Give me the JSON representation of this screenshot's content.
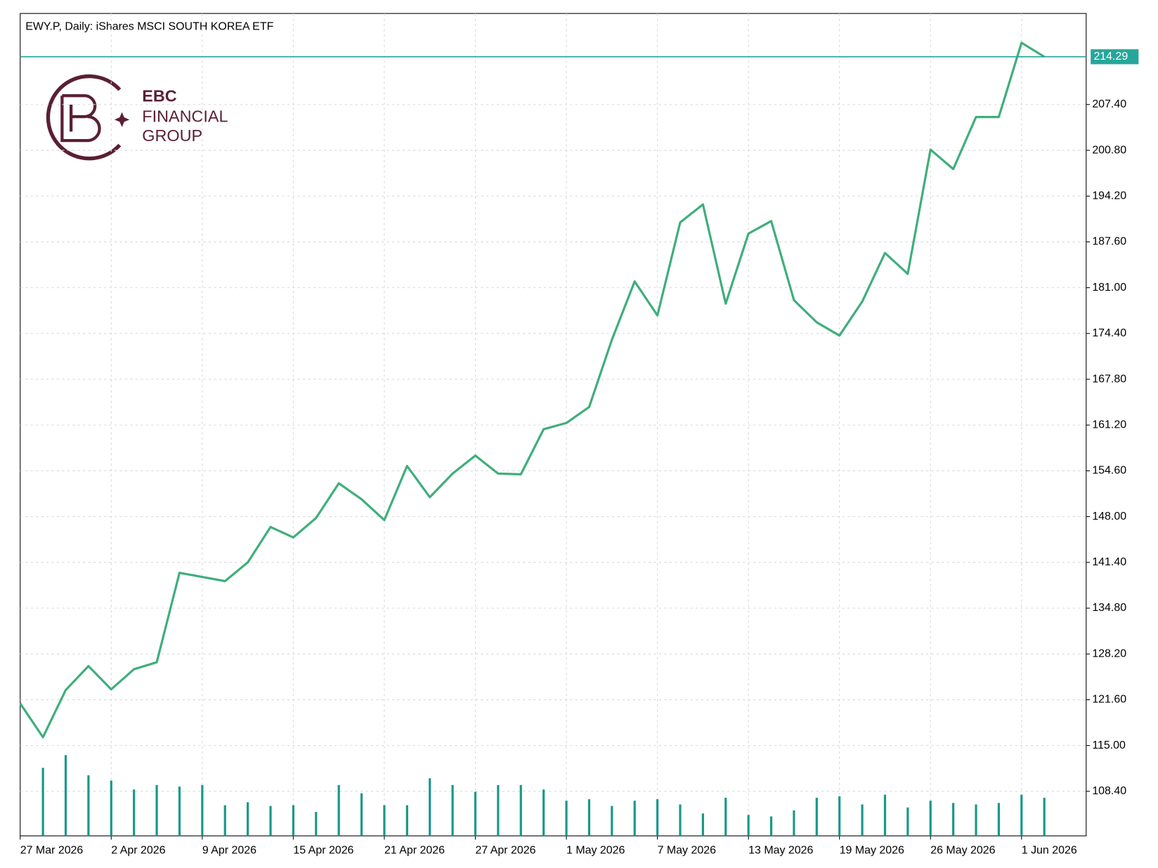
{
  "chart_data": {
    "type": "line",
    "title": "EWY.P, Daily:  iShares MSCI SOUTH KOREA ETF",
    "logo": {
      "line1": "EBC",
      "line2": "FINANCIAL",
      "line3": "GROUP"
    },
    "categories": [
      "27 Mar 2026",
      null,
      null,
      null,
      "2 Apr 2026",
      null,
      null,
      null,
      "9 Apr 2026",
      null,
      null,
      null,
      "15 Apr 2026",
      null,
      null,
      null,
      "21 Apr 2026",
      null,
      null,
      null,
      "27 Apr 2026",
      null,
      null,
      null,
      "1 May 2026",
      null,
      null,
      null,
      "7 May 2026",
      null,
      null,
      null,
      "13 May 2026",
      null,
      null,
      null,
      "19 May 2026",
      null,
      null,
      null,
      "26 May 2026",
      null,
      null,
      null,
      "1 Jun 2026",
      null
    ],
    "values": [
      121.07,
      116.2,
      123.0,
      126.45,
      123.1,
      126.0,
      127.0,
      139.9,
      139.3,
      138.7,
      141.4,
      146.5,
      145.0,
      147.8,
      152.8,
      150.5,
      147.5,
      155.3,
      150.8,
      154.2,
      156.8,
      154.2,
      154.1,
      160.6,
      161.5,
      163.8,
      173.5,
      181.9,
      177.0,
      190.4,
      193.0,
      178.7,
      188.8,
      190.6,
      179.2,
      176.0,
      174.1,
      179.0,
      186.0,
      183.0,
      200.9,
      198.1,
      205.6,
      205.6,
      216.3,
      214.29
    ],
    "color": "#3fae7c",
    "volume_values": [
      null,
      91,
      108,
      81,
      74,
      62,
      68,
      66,
      68,
      41,
      45,
      40,
      41,
      32,
      68,
      57,
      41,
      41,
      77,
      68,
      59,
      68,
      68,
      62,
      47,
      49,
      40,
      47,
      49,
      42,
      30,
      51,
      28,
      26,
      34,
      51,
      53,
      42,
      55,
      38,
      47,
      44,
      42,
      44,
      55,
      51
    ],
    "volume_color": "#17998a",
    "volume_lim": [
      0,
      1100
    ],
    "ylim": [
      101.98,
      220.53
    ],
    "yticks": [
      {
        "value": 108.4,
        "label": "108.40"
      },
      {
        "value": 115.0,
        "label": "115.00"
      },
      {
        "value": 121.6,
        "label": "121.60"
      },
      {
        "value": 128.2,
        "label": "128.20"
      },
      {
        "value": 134.8,
        "label": "134.80"
      },
      {
        "value": 141.4,
        "label": "141.40"
      },
      {
        "value": 148.0,
        "label": "148.00"
      },
      {
        "value": 154.6,
        "label": "154.60"
      },
      {
        "value": 161.2,
        "label": "161.20"
      },
      {
        "value": 167.8,
        "label": "167.80"
      },
      {
        "value": 174.4,
        "label": "174.40"
      },
      {
        "value": 181.0,
        "label": "181.00"
      },
      {
        "value": 187.6,
        "label": "187.60"
      },
      {
        "value": 194.2,
        "label": "194.20"
      },
      {
        "value": 200.8,
        "label": "200.80"
      },
      {
        "value": 207.4,
        "label": "207.40"
      }
    ],
    "last_price": 214.29,
    "last_price_color": "#26a69a",
    "grid": true
  }
}
